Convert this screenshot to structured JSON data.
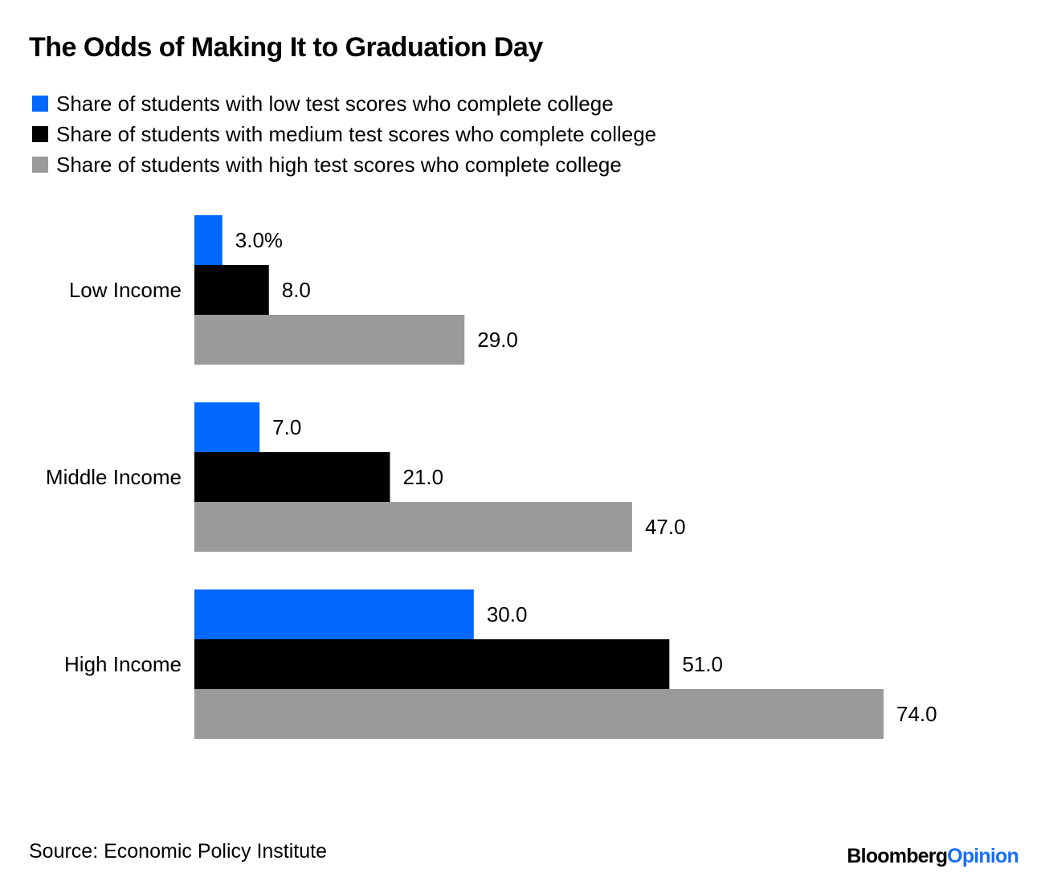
{
  "chart_data": {
    "type": "bar",
    "orientation": "horizontal",
    "title": "The Odds of Making It to Graduation Day",
    "categories": [
      "Low Income",
      "Middle Income",
      "High Income"
    ],
    "series": [
      {
        "name": "Share of students with low test scores who complete college",
        "color": "#0068ff",
        "values": [
          3.0,
          7.0,
          30.0
        ],
        "labels": [
          "3.0%",
          "7.0",
          "30.0"
        ]
      },
      {
        "name": "Share of students with medium test scores who complete college",
        "color": "#000000",
        "values": [
          8.0,
          21.0,
          51.0
        ],
        "labels": [
          "8.0",
          "21.0",
          "51.0"
        ]
      },
      {
        "name": "Share of students with high test scores who complete college",
        "color": "#9a9a9a",
        "values": [
          29.0,
          47.0,
          74.0
        ],
        "labels": [
          "29.0",
          "47.0",
          "74.0"
        ]
      }
    ],
    "xlim": [
      0,
      74
    ],
    "legend_position": "top-left",
    "grid": false
  },
  "source": "Source: Economic Policy Institute",
  "brand": {
    "main": "Bloomberg",
    "accent": "Opinion"
  }
}
